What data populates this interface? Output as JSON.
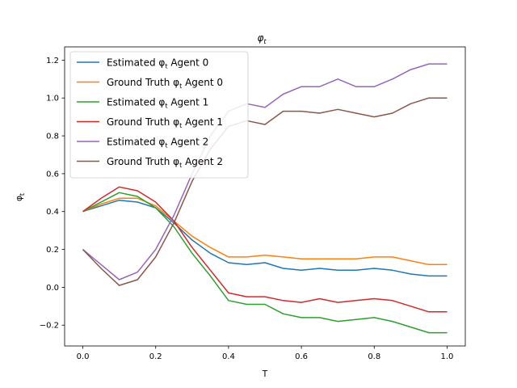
{
  "chart_data": {
    "type": "line",
    "title": "φt",
    "title_main": "φ",
    "title_sub": "t",
    "xlabel": "T",
    "ylabel": "φt",
    "ylabel_main": "φ",
    "ylabel_sub": "t",
    "xlim": [
      -0.05,
      1.05
    ],
    "ylim": [
      -0.31,
      1.27
    ],
    "xticks": [
      0.0,
      0.2,
      0.4,
      0.6,
      0.8,
      1.0
    ],
    "xtick_labels": [
      "0.0",
      "0.2",
      "0.4",
      "0.6",
      "0.8",
      "1.0"
    ],
    "yticks": [
      -0.2,
      0.0,
      0.2,
      0.4,
      0.6,
      0.8,
      1.0,
      1.2
    ],
    "ytick_labels": [
      "−0.2",
      "0.0",
      "0.2",
      "0.4",
      "0.6",
      "0.8",
      "1.0",
      "1.2"
    ],
    "grid": false,
    "legend_placement": "top-left",
    "series": [
      {
        "name": "Estimated φt Agent 0",
        "label_prefix": "Estimated ",
        "label_suffix": " Agent 0",
        "color": "#1f77b4",
        "x": [
          0,
          0.05,
          0.1,
          0.15,
          0.2,
          0.25,
          0.3,
          0.35,
          0.4,
          0.45,
          0.5,
          0.55,
          0.6,
          0.65,
          0.7,
          0.75,
          0.8,
          0.85,
          0.9,
          0.95,
          1.0
        ],
        "y": [
          0.4,
          0.43,
          0.46,
          0.45,
          0.42,
          0.34,
          0.25,
          0.18,
          0.13,
          0.12,
          0.13,
          0.1,
          0.09,
          0.1,
          0.09,
          0.09,
          0.1,
          0.09,
          0.07,
          0.06,
          0.06
        ]
      },
      {
        "name": "Ground Truth φt Agent 0",
        "label_prefix": "Ground Truth ",
        "label_suffix": " Agent 0",
        "color": "#ff7f0e",
        "x": [
          0,
          0.05,
          0.1,
          0.15,
          0.2,
          0.25,
          0.3,
          0.35,
          0.4,
          0.45,
          0.5,
          0.55,
          0.6,
          0.65,
          0.7,
          0.75,
          0.8,
          0.85,
          0.9,
          0.95,
          1.0
        ],
        "y": [
          0.4,
          0.44,
          0.47,
          0.47,
          0.43,
          0.35,
          0.27,
          0.21,
          0.16,
          0.16,
          0.17,
          0.16,
          0.15,
          0.15,
          0.15,
          0.15,
          0.16,
          0.16,
          0.14,
          0.12,
          0.12
        ]
      },
      {
        "name": "Estimated φt Agent 1",
        "label_prefix": "Estimated ",
        "label_suffix": " Agent 1",
        "color": "#2ca02c",
        "x": [
          0,
          0.05,
          0.1,
          0.15,
          0.2,
          0.25,
          0.3,
          0.35,
          0.4,
          0.45,
          0.5,
          0.55,
          0.6,
          0.65,
          0.7,
          0.75,
          0.8,
          0.85,
          0.9,
          0.95,
          1.0
        ],
        "y": [
          0.4,
          0.45,
          0.5,
          0.48,
          0.42,
          0.32,
          0.18,
          0.06,
          -0.07,
          -0.09,
          -0.09,
          -0.14,
          -0.16,
          -0.16,
          -0.18,
          -0.17,
          -0.16,
          -0.18,
          -0.21,
          -0.24,
          -0.24
        ]
      },
      {
        "name": "Ground Truth φt Agent 1",
        "label_prefix": "Ground Truth ",
        "label_suffix": " Agent 1",
        "color": "#d62728",
        "x": [
          0,
          0.05,
          0.1,
          0.15,
          0.2,
          0.25,
          0.3,
          0.35,
          0.4,
          0.45,
          0.5,
          0.55,
          0.6,
          0.65,
          0.7,
          0.75,
          0.8,
          0.85,
          0.9,
          0.95,
          1.0
        ],
        "y": [
          0.4,
          0.47,
          0.53,
          0.51,
          0.45,
          0.35,
          0.21,
          0.09,
          -0.03,
          -0.05,
          -0.05,
          -0.07,
          -0.08,
          -0.06,
          -0.08,
          -0.07,
          -0.06,
          -0.07,
          -0.1,
          -0.13,
          -0.13
        ]
      },
      {
        "name": "Estimated φt Agent 2",
        "label_prefix": "Estimated ",
        "label_suffix": " Agent 2",
        "color": "#9467bd",
        "x": [
          0,
          0.05,
          0.1,
          0.15,
          0.2,
          0.25,
          0.3,
          0.35,
          0.4,
          0.45,
          0.5,
          0.55,
          0.6,
          0.65,
          0.7,
          0.75,
          0.8,
          0.85,
          0.9,
          0.95,
          1.0
        ],
        "y": [
          0.2,
          0.12,
          0.04,
          0.08,
          0.2,
          0.38,
          0.6,
          0.8,
          0.93,
          0.97,
          0.95,
          1.02,
          1.06,
          1.06,
          1.1,
          1.06,
          1.06,
          1.1,
          1.15,
          1.18,
          1.18
        ]
      },
      {
        "name": "Ground Truth φt Agent 2",
        "label_prefix": "Ground Truth ",
        "label_suffix": " Agent 2",
        "color": "#8c564b",
        "x": [
          0,
          0.05,
          0.1,
          0.15,
          0.2,
          0.25,
          0.3,
          0.35,
          0.4,
          0.45,
          0.5,
          0.55,
          0.6,
          0.65,
          0.7,
          0.75,
          0.8,
          0.85,
          0.9,
          0.95,
          1.0
        ],
        "y": [
          0.2,
          0.1,
          0.01,
          0.04,
          0.16,
          0.34,
          0.56,
          0.73,
          0.85,
          0.88,
          0.86,
          0.93,
          0.93,
          0.92,
          0.94,
          0.92,
          0.9,
          0.92,
          0.97,
          1.0,
          1.0
        ]
      }
    ]
  }
}
